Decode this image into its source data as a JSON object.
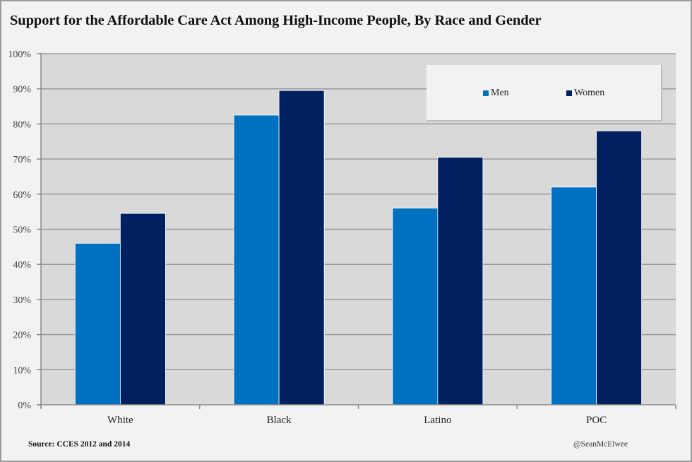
{
  "chart_data": {
    "type": "bar",
    "title": "Support for the Affordable Care Act Among High-Income People, By Race and Gender",
    "categories": [
      "White",
      "Black",
      "Latino",
      "POC"
    ],
    "series": [
      {
        "name": "Men",
        "color": "#0070c0",
        "values": [
          46,
          82.5,
          56,
          62
        ]
      },
      {
        "name": "Women",
        "color": "#002060",
        "values": [
          54.5,
          89.5,
          70.5,
          78
        ]
      }
    ],
    "xlabel": "",
    "ylabel": "",
    "ylim": [
      0,
      100
    ],
    "yticks": [
      "0%",
      "10%",
      "20%",
      "30%",
      "40%",
      "50%",
      "60%",
      "70%",
      "80%",
      "90%",
      "100%"
    ],
    "grid": true,
    "legend_position": "top-right",
    "plot_background": "#d9d9d9"
  },
  "footer": {
    "source": "Source: CCES 2012 and 2014",
    "credit": "@SeanMcElwee"
  }
}
